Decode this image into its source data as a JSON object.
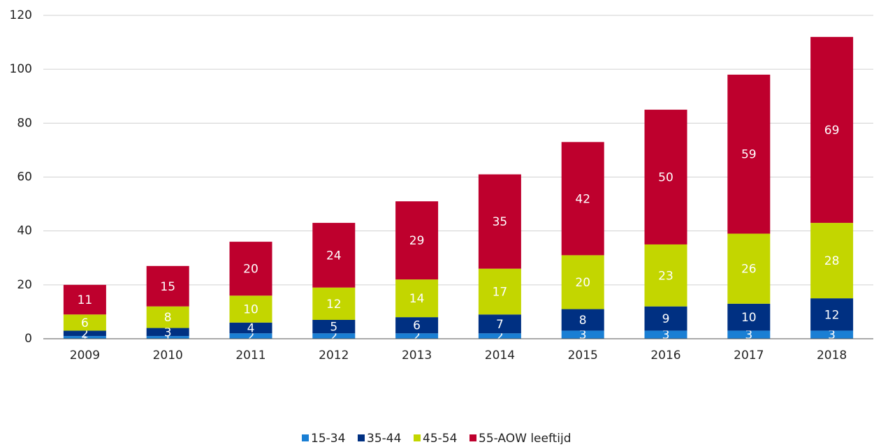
{
  "chart_data": {
    "type": "stacked_bar",
    "categories": [
      "2009",
      "2010",
      "2011",
      "2012",
      "2013",
      "2014",
      "2015",
      "2016",
      "2017",
      "2018"
    ],
    "series": [
      {
        "name": "15-34",
        "color": "#1a7fd4",
        "values": [
          1,
          1,
          2,
          2,
          2,
          2,
          3,
          3,
          3,
          3
        ]
      },
      {
        "name": "35-44",
        "color": "#003082",
        "values": [
          2,
          3,
          4,
          5,
          6,
          7,
          8,
          9,
          10,
          12
        ]
      },
      {
        "name": "45-54",
        "color": "#c3d600",
        "values": [
          6,
          8,
          10,
          12,
          14,
          17,
          20,
          23,
          26,
          28
        ]
      },
      {
        "name": "55-AOW leeftijd",
        "color": "#be002d",
        "values": [
          11,
          15,
          20,
          24,
          29,
          35,
          42,
          50,
          59,
          69
        ]
      }
    ],
    "ylim": [
      0,
      120
    ],
    "yticks": [
      0,
      20,
      40,
      60,
      80,
      100,
      120
    ],
    "grid": true,
    "legend": "bottom"
  }
}
